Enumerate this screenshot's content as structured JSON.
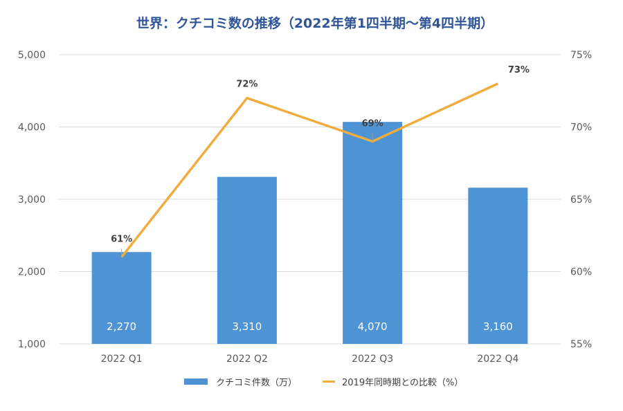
{
  "chart_data": {
    "type": "bar+line",
    "title": "世界：クチコミ数の推移（2022年第1四半期～第4四半期）",
    "categories": [
      "2022 Q1",
      "2022 Q2",
      "2022 Q3",
      "2022 Q4"
    ],
    "series": [
      {
        "name": "クチコミ件数（万）",
        "type": "bar",
        "axis": "left",
        "values": [
          2270,
          3310,
          4070,
          3160
        ],
        "labels": [
          "2,270",
          "3,310",
          "4,070",
          "3,160"
        ],
        "color": "#4e93d4"
      },
      {
        "name": "2019年同時期との比較（%）",
        "type": "line",
        "axis": "right",
        "values": [
          61,
          72,
          69,
          73
        ],
        "labels": [
          "61%",
          "72%",
          "69%",
          "73%"
        ],
        "color": "#f0ad3e"
      }
    ],
    "y_left": {
      "range": [
        1000,
        5000
      ],
      "ticks": [
        "1,000",
        "2,000",
        "3,000",
        "4,000",
        "5,000"
      ]
    },
    "y_right": {
      "range": [
        55,
        75
      ],
      "ticks": [
        "55%",
        "60%",
        "65%",
        "70%",
        "75%"
      ]
    },
    "grid": true,
    "legend": "bottom"
  }
}
